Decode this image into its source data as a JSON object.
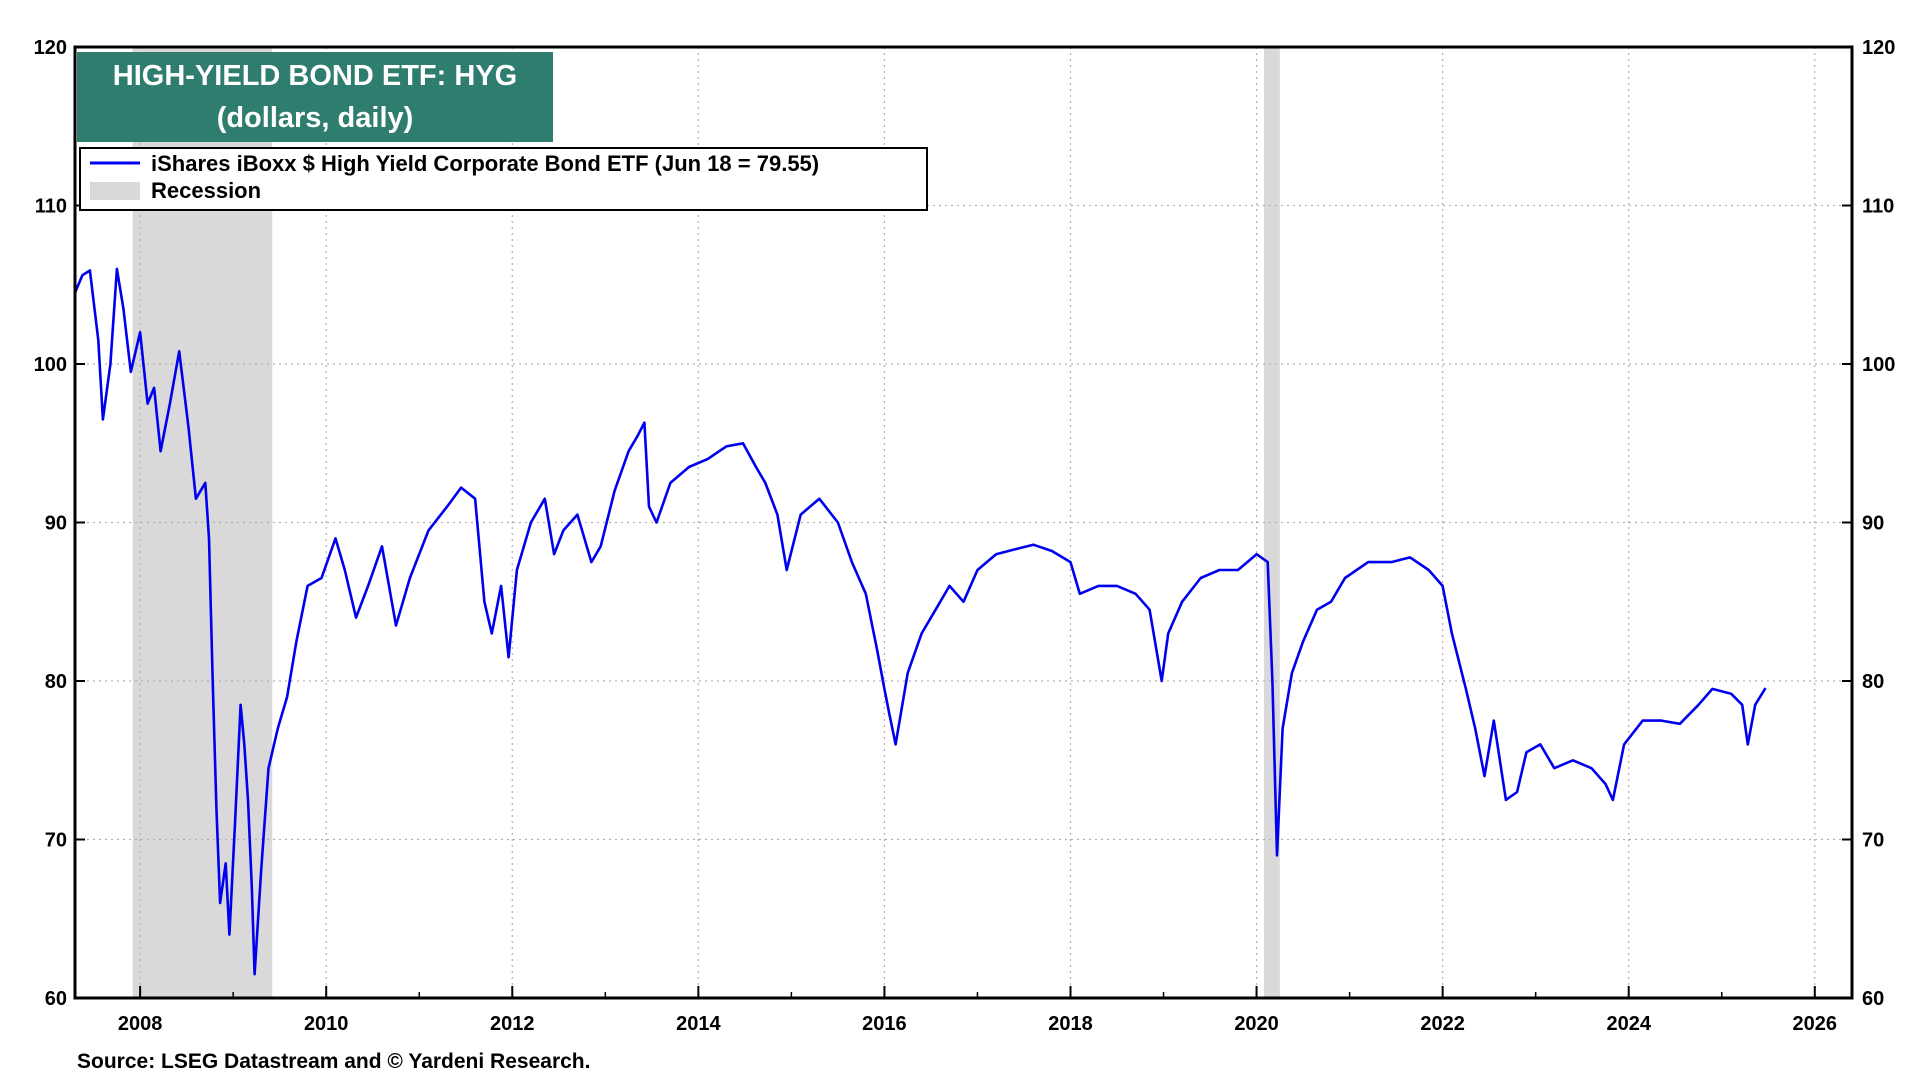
{
  "chart_data": {
    "type": "line",
    "title": "HIGH-YIELD BOND ETF: HYG",
    "subtitle": "(dollars, daily)",
    "source": "Source: LSEG Datastream and © Yardeni Research.",
    "xlim": [
      2007.3,
      2026.4
    ],
    "ylim": [
      60,
      120
    ],
    "x_ticks": [
      "2008",
      "2010",
      "2012",
      "2014",
      "2016",
      "2018",
      "2020",
      "2022",
      "2024",
      "2026"
    ],
    "y_ticks": [
      "60",
      "70",
      "80",
      "90",
      "100",
      "110",
      "120"
    ],
    "grid": true,
    "legend_placement": "top-left",
    "legend": {
      "series_label": "iShares iBoxx $ High Yield Corporate Bond ETF (Jun 18 = 79.55)",
      "recession_label": "Recession"
    },
    "colors": {
      "series": "#0000ee",
      "recession": "#d9d9d9",
      "title_bg": "#2e7d6e"
    },
    "recessions": [
      {
        "start": 2007.92,
        "end": 2009.42
      },
      {
        "start": 2020.08,
        "end": 2020.25
      }
    ],
    "series": [
      {
        "name": "iShares iBoxx $ High Yield Corporate Bond ETF (Jun 18 = 79.55)",
        "points": [
          [
            2007.3,
            104.5
          ],
          [
            2007.38,
            105.6
          ],
          [
            2007.46,
            105.9
          ],
          [
            2007.55,
            101.5
          ],
          [
            2007.6,
            96.5
          ],
          [
            2007.68,
            100.0
          ],
          [
            2007.75,
            106.0
          ],
          [
            2007.82,
            103.5
          ],
          [
            2007.9,
            99.5
          ],
          [
            2008.0,
            102.0
          ],
          [
            2008.08,
            97.5
          ],
          [
            2008.15,
            98.5
          ],
          [
            2008.22,
            94.5
          ],
          [
            2008.32,
            97.5
          ],
          [
            2008.42,
            100.8
          ],
          [
            2008.52,
            96.0
          ],
          [
            2008.6,
            91.5
          ],
          [
            2008.7,
            92.5
          ],
          [
            2008.74,
            89.0
          ],
          [
            2008.78,
            80.0
          ],
          [
            2008.82,
            72.0
          ],
          [
            2008.86,
            66.0
          ],
          [
            2008.92,
            68.5
          ],
          [
            2008.96,
            64.0
          ],
          [
            2009.02,
            71.0
          ],
          [
            2009.08,
            78.5
          ],
          [
            2009.12,
            76.0
          ],
          [
            2009.16,
            72.5
          ],
          [
            2009.2,
            67.0
          ],
          [
            2009.23,
            61.5
          ],
          [
            2009.3,
            68.0
          ],
          [
            2009.38,
            74.5
          ],
          [
            2009.48,
            77.0
          ],
          [
            2009.58,
            79.0
          ],
          [
            2009.68,
            82.5
          ],
          [
            2009.8,
            86.0
          ],
          [
            2009.95,
            86.5
          ],
          [
            2010.1,
            89.0
          ],
          [
            2010.2,
            87.0
          ],
          [
            2010.32,
            84.0
          ],
          [
            2010.45,
            86.0
          ],
          [
            2010.6,
            88.5
          ],
          [
            2010.75,
            83.5
          ],
          [
            2010.9,
            86.5
          ],
          [
            2011.1,
            89.5
          ],
          [
            2011.3,
            91.0
          ],
          [
            2011.45,
            92.2
          ],
          [
            2011.6,
            91.5
          ],
          [
            2011.7,
            85.0
          ],
          [
            2011.78,
            83.0
          ],
          [
            2011.88,
            86.0
          ],
          [
            2011.96,
            81.5
          ],
          [
            2012.05,
            87.0
          ],
          [
            2012.2,
            90.0
          ],
          [
            2012.35,
            91.5
          ],
          [
            2012.45,
            88.0
          ],
          [
            2012.55,
            89.5
          ],
          [
            2012.7,
            90.5
          ],
          [
            2012.85,
            87.5
          ],
          [
            2012.95,
            88.5
          ],
          [
            2013.1,
            92.0
          ],
          [
            2013.25,
            94.5
          ],
          [
            2013.35,
            95.5
          ],
          [
            2013.42,
            96.3
          ],
          [
            2013.47,
            91.0
          ],
          [
            2013.55,
            90.0
          ],
          [
            2013.7,
            92.5
          ],
          [
            2013.9,
            93.5
          ],
          [
            2014.1,
            94.0
          ],
          [
            2014.3,
            94.8
          ],
          [
            2014.48,
            95.0
          ],
          [
            2014.62,
            93.5
          ],
          [
            2014.72,
            92.5
          ],
          [
            2014.85,
            90.5
          ],
          [
            2014.95,
            87.0
          ],
          [
            2015.1,
            90.5
          ],
          [
            2015.3,
            91.5
          ],
          [
            2015.5,
            90.0
          ],
          [
            2015.65,
            87.5
          ],
          [
            2015.8,
            85.5
          ],
          [
            2015.92,
            82.0
          ],
          [
            2016.0,
            79.5
          ],
          [
            2016.05,
            78.0
          ],
          [
            2016.12,
            76.0
          ],
          [
            2016.25,
            80.5
          ],
          [
            2016.4,
            83.0
          ],
          [
            2016.55,
            84.5
          ],
          [
            2016.7,
            86.0
          ],
          [
            2016.85,
            85.0
          ],
          [
            2017.0,
            87.0
          ],
          [
            2017.2,
            88.0
          ],
          [
            2017.4,
            88.3
          ],
          [
            2017.6,
            88.6
          ],
          [
            2017.8,
            88.2
          ],
          [
            2018.0,
            87.5
          ],
          [
            2018.1,
            85.5
          ],
          [
            2018.3,
            86.0
          ],
          [
            2018.5,
            86.0
          ],
          [
            2018.7,
            85.5
          ],
          [
            2018.85,
            84.5
          ],
          [
            2018.98,
            80.0
          ],
          [
            2019.05,
            83.0
          ],
          [
            2019.2,
            85.0
          ],
          [
            2019.4,
            86.5
          ],
          [
            2019.6,
            87.0
          ],
          [
            2019.8,
            87.0
          ],
          [
            2020.0,
            88.0
          ],
          [
            2020.12,
            87.5
          ],
          [
            2020.17,
            80.0
          ],
          [
            2020.22,
            69.0
          ],
          [
            2020.28,
            77.0
          ],
          [
            2020.38,
            80.5
          ],
          [
            2020.5,
            82.5
          ],
          [
            2020.65,
            84.5
          ],
          [
            2020.8,
            85.0
          ],
          [
            2020.95,
            86.5
          ],
          [
            2021.2,
            87.5
          ],
          [
            2021.45,
            87.5
          ],
          [
            2021.65,
            87.8
          ],
          [
            2021.85,
            87.0
          ],
          [
            2022.0,
            86.0
          ],
          [
            2022.1,
            83.0
          ],
          [
            2022.25,
            79.5
          ],
          [
            2022.35,
            77.0
          ],
          [
            2022.45,
            74.0
          ],
          [
            2022.55,
            77.5
          ],
          [
            2022.68,
            72.5
          ],
          [
            2022.8,
            73.0
          ],
          [
            2022.9,
            75.5
          ],
          [
            2023.05,
            76.0
          ],
          [
            2023.2,
            74.5
          ],
          [
            2023.4,
            75.0
          ],
          [
            2023.6,
            74.5
          ],
          [
            2023.75,
            73.5
          ],
          [
            2023.83,
            72.5
          ],
          [
            2023.95,
            76.0
          ],
          [
            2024.15,
            77.5
          ],
          [
            2024.35,
            77.5
          ],
          [
            2024.55,
            77.3
          ],
          [
            2024.75,
            78.5
          ],
          [
            2024.9,
            79.5
          ],
          [
            2025.1,
            79.2
          ],
          [
            2025.22,
            78.5
          ],
          [
            2025.28,
            76.0
          ],
          [
            2025.36,
            78.5
          ],
          [
            2025.47,
            79.55
          ]
        ]
      }
    ]
  }
}
